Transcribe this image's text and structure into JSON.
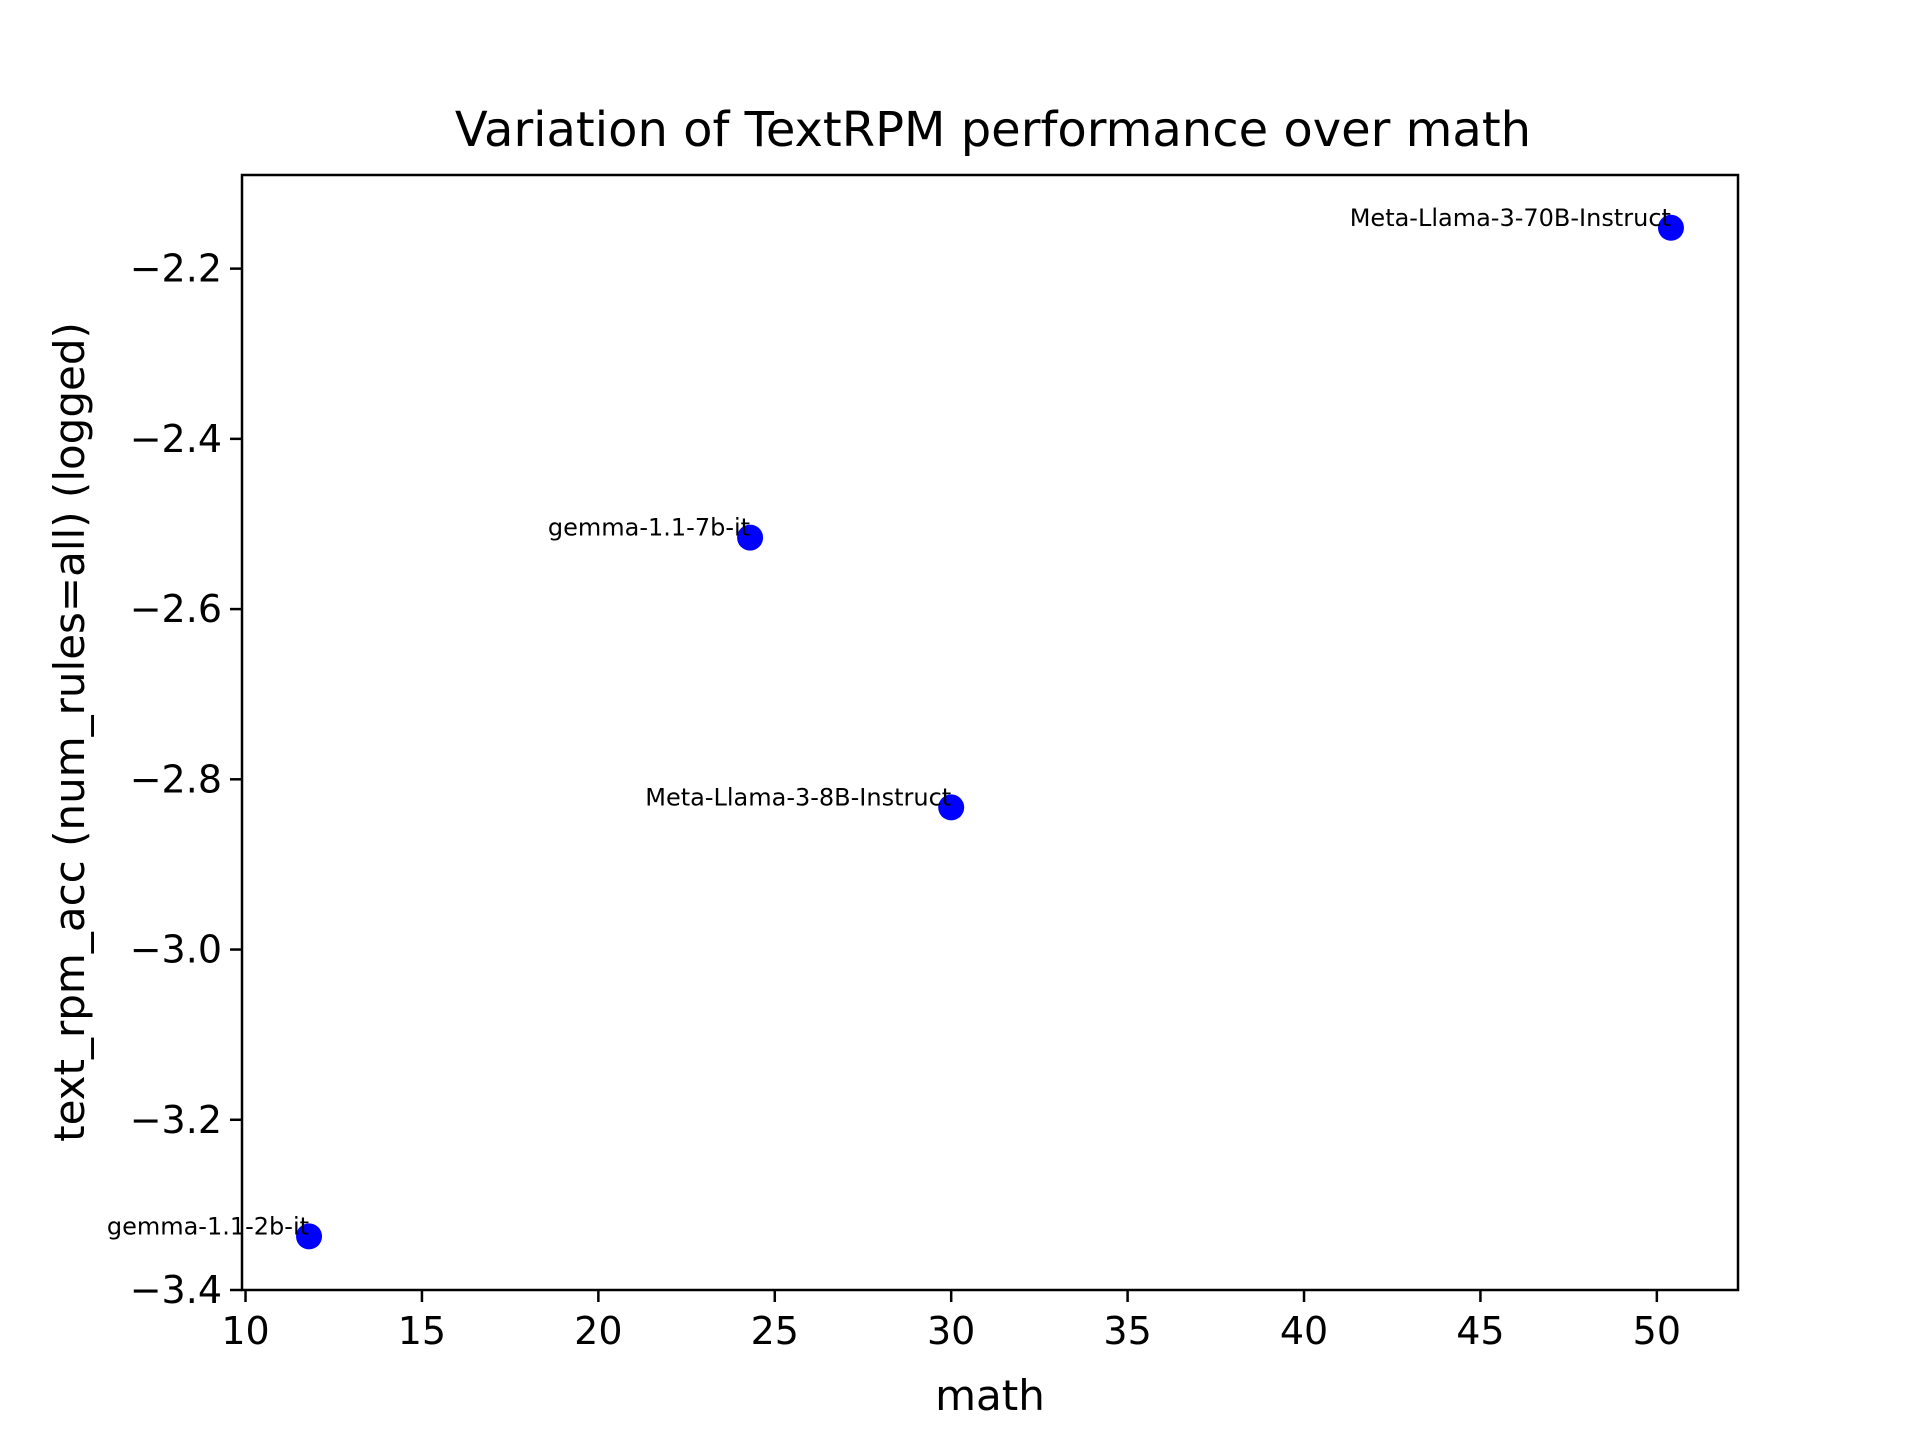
{
  "chart_data": {
    "type": "scatter",
    "title": "Variation of TextRPM performance over math",
    "xlabel": "math",
    "ylabel": "text_rpm_acc (num_rules=all) (logged)",
    "xlim": [
      9.9,
      52.3
    ],
    "ylim": [
      -3.4,
      -2.09
    ],
    "xticks": [
      10,
      15,
      20,
      25,
      30,
      35,
      40,
      45,
      50
    ],
    "xtick_labels": [
      "10",
      "15",
      "20",
      "25",
      "30",
      "35",
      "40",
      "45",
      "50"
    ],
    "yticks": [
      -3.4,
      -3.2,
      -3.0,
      -2.8,
      -2.6,
      -2.4,
      -2.2
    ],
    "ytick_labels": [
      "−3.4",
      "−3.2",
      "−3.0",
      "−2.8",
      "−2.6",
      "−2.4",
      "−2.2"
    ],
    "grid": false,
    "marker_color": "#0000ff",
    "points": [
      {
        "label": "gemma-1.1-2b-it",
        "x": 11.8,
        "y": -3.337
      },
      {
        "label": "gemma-1.1-7b-it",
        "x": 24.3,
        "y": -2.516
      },
      {
        "label": "Meta-Llama-3-8B-Instruct",
        "x": 30.0,
        "y": -2.833
      },
      {
        "label": "Meta-Llama-3-70B-Instruct",
        "x": 50.4,
        "y": -2.152
      }
    ]
  }
}
